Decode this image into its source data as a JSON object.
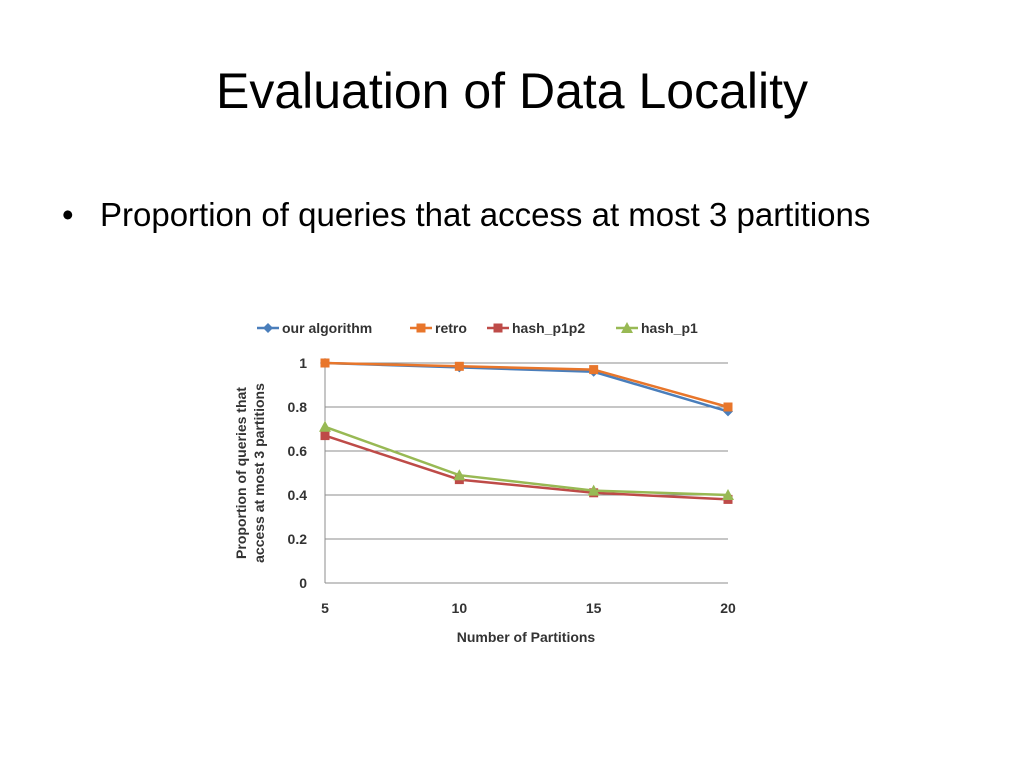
{
  "slide": {
    "title": "Evaluation of Data Locality",
    "bullet_marker": "•",
    "bullet": "Proportion of queries that access at most 3 partitions"
  },
  "chart_data": {
    "type": "line",
    "x": [
      5,
      10,
      15,
      20
    ],
    "xlabel": "Number of Partitions",
    "ylabel": "Proportion of queries that access at most 3 partitions",
    "ylim": [
      0,
      1
    ],
    "yticks": [
      0,
      0.2,
      0.4,
      0.6,
      0.8,
      1
    ],
    "grid": true,
    "legend_position": "top",
    "series": [
      {
        "name": "our algorithm",
        "values": [
          1.0,
          0.98,
          0.96,
          0.78
        ],
        "color": "#4a7ebb",
        "marker": "diamond"
      },
      {
        "name": "retro",
        "values": [
          1.0,
          0.985,
          0.97,
          0.8
        ],
        "color": "#e8762b",
        "marker": "square"
      },
      {
        "name": "hash_p1p2",
        "values": [
          0.67,
          0.47,
          0.41,
          0.38
        ],
        "color": "#be4b48",
        "marker": "square"
      },
      {
        "name": "hash_p1",
        "values": [
          0.71,
          0.49,
          0.42,
          0.4
        ],
        "color": "#98b954",
        "marker": "triangle"
      }
    ]
  }
}
